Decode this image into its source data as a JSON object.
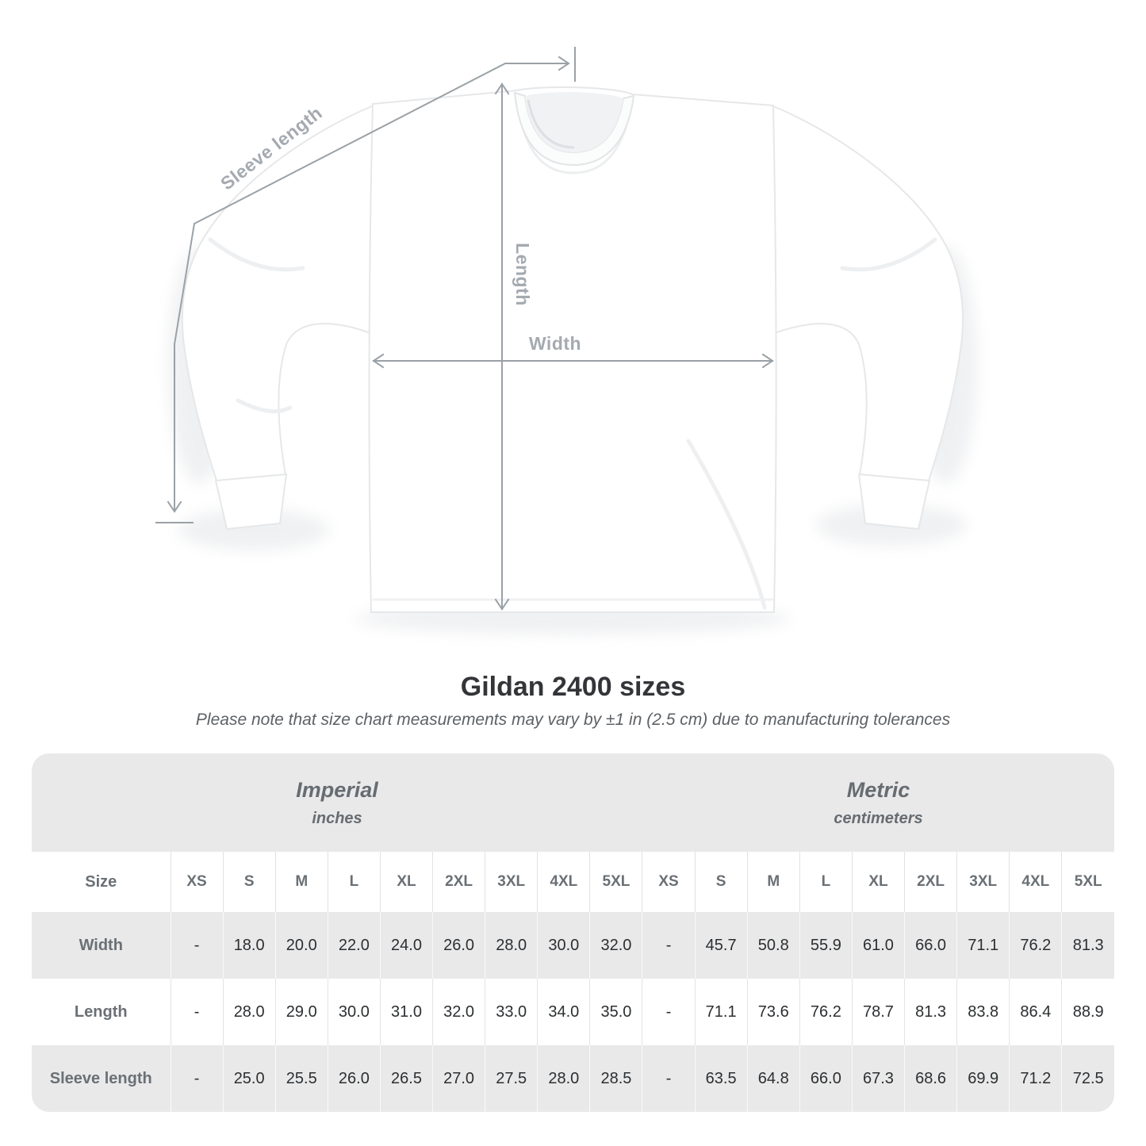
{
  "figure": {
    "labels": {
      "sleeve_length": "Sleeve length",
      "length": "Length",
      "width": "Width"
    }
  },
  "title": "Gildan 2400 sizes",
  "subtitle": "Please note that size chart measurements may vary by ±1 in (2.5 cm) due to manufacturing tolerances",
  "table": {
    "unit_headers": [
      {
        "label": "Imperial",
        "sublabel": "inches"
      },
      {
        "label": "Metric",
        "sublabel": "centimeters"
      }
    ],
    "size_label": "Size",
    "sizes": [
      "XS",
      "S",
      "M",
      "L",
      "XL",
      "2XL",
      "3XL",
      "4XL",
      "5XL"
    ],
    "rows": [
      {
        "label": "Width",
        "imperial": [
          "-",
          "18.0",
          "20.0",
          "22.0",
          "24.0",
          "26.0",
          "28.0",
          "30.0",
          "32.0"
        ],
        "metric": [
          "-",
          "45.7",
          "50.8",
          "55.9",
          "61.0",
          "66.0",
          "71.1",
          "76.2",
          "81.3"
        ]
      },
      {
        "label": "Length",
        "imperial": [
          "-",
          "28.0",
          "29.0",
          "30.0",
          "31.0",
          "32.0",
          "33.0",
          "34.0",
          "35.0"
        ],
        "metric": [
          "-",
          "71.1",
          "73.6",
          "76.2",
          "78.7",
          "81.3",
          "83.8",
          "86.4",
          "88.9"
        ]
      },
      {
        "label": "Sleeve length",
        "imperial": [
          "-",
          "25.0",
          "25.5",
          "26.0",
          "26.5",
          "27.0",
          "27.5",
          "28.0",
          "28.5"
        ],
        "metric": [
          "-",
          "63.5",
          "64.8",
          "66.0",
          "67.3",
          "68.6",
          "69.9",
          "71.2",
          "72.5"
        ]
      }
    ]
  },
  "chart_data": {
    "type": "table",
    "title": "Gildan 2400 sizes",
    "columns": [
      "XS",
      "S",
      "M",
      "L",
      "XL",
      "2XL",
      "3XL",
      "4XL",
      "5XL"
    ],
    "series": [
      {
        "name": "Width (inches)",
        "values": [
          null,
          18.0,
          20.0,
          22.0,
          24.0,
          26.0,
          28.0,
          30.0,
          32.0
        ]
      },
      {
        "name": "Length (inches)",
        "values": [
          null,
          28.0,
          29.0,
          30.0,
          31.0,
          32.0,
          33.0,
          34.0,
          35.0
        ]
      },
      {
        "name": "Sleeve length (inches)",
        "values": [
          null,
          25.0,
          25.5,
          26.0,
          26.5,
          27.0,
          27.5,
          28.0,
          28.5
        ]
      },
      {
        "name": "Width (cm)",
        "values": [
          null,
          45.7,
          50.8,
          55.9,
          61.0,
          66.0,
          71.1,
          76.2,
          81.3
        ]
      },
      {
        "name": "Length (cm)",
        "values": [
          null,
          71.1,
          73.6,
          76.2,
          78.7,
          81.3,
          83.8,
          86.4,
          88.9
        ]
      },
      {
        "name": "Sleeve length (cm)",
        "values": [
          null,
          63.5,
          64.8,
          66.0,
          67.3,
          68.6,
          69.9,
          71.2,
          72.5
        ]
      }
    ]
  },
  "colors": {
    "band_gray": "#e9e9ea",
    "row_white": "#ffffff",
    "header_text": "#6a7075",
    "value_text": "#2c2f31",
    "annotation_line": "#9aa1a6",
    "annotation_label": "#a4aab0",
    "title_text": "#333538"
  }
}
